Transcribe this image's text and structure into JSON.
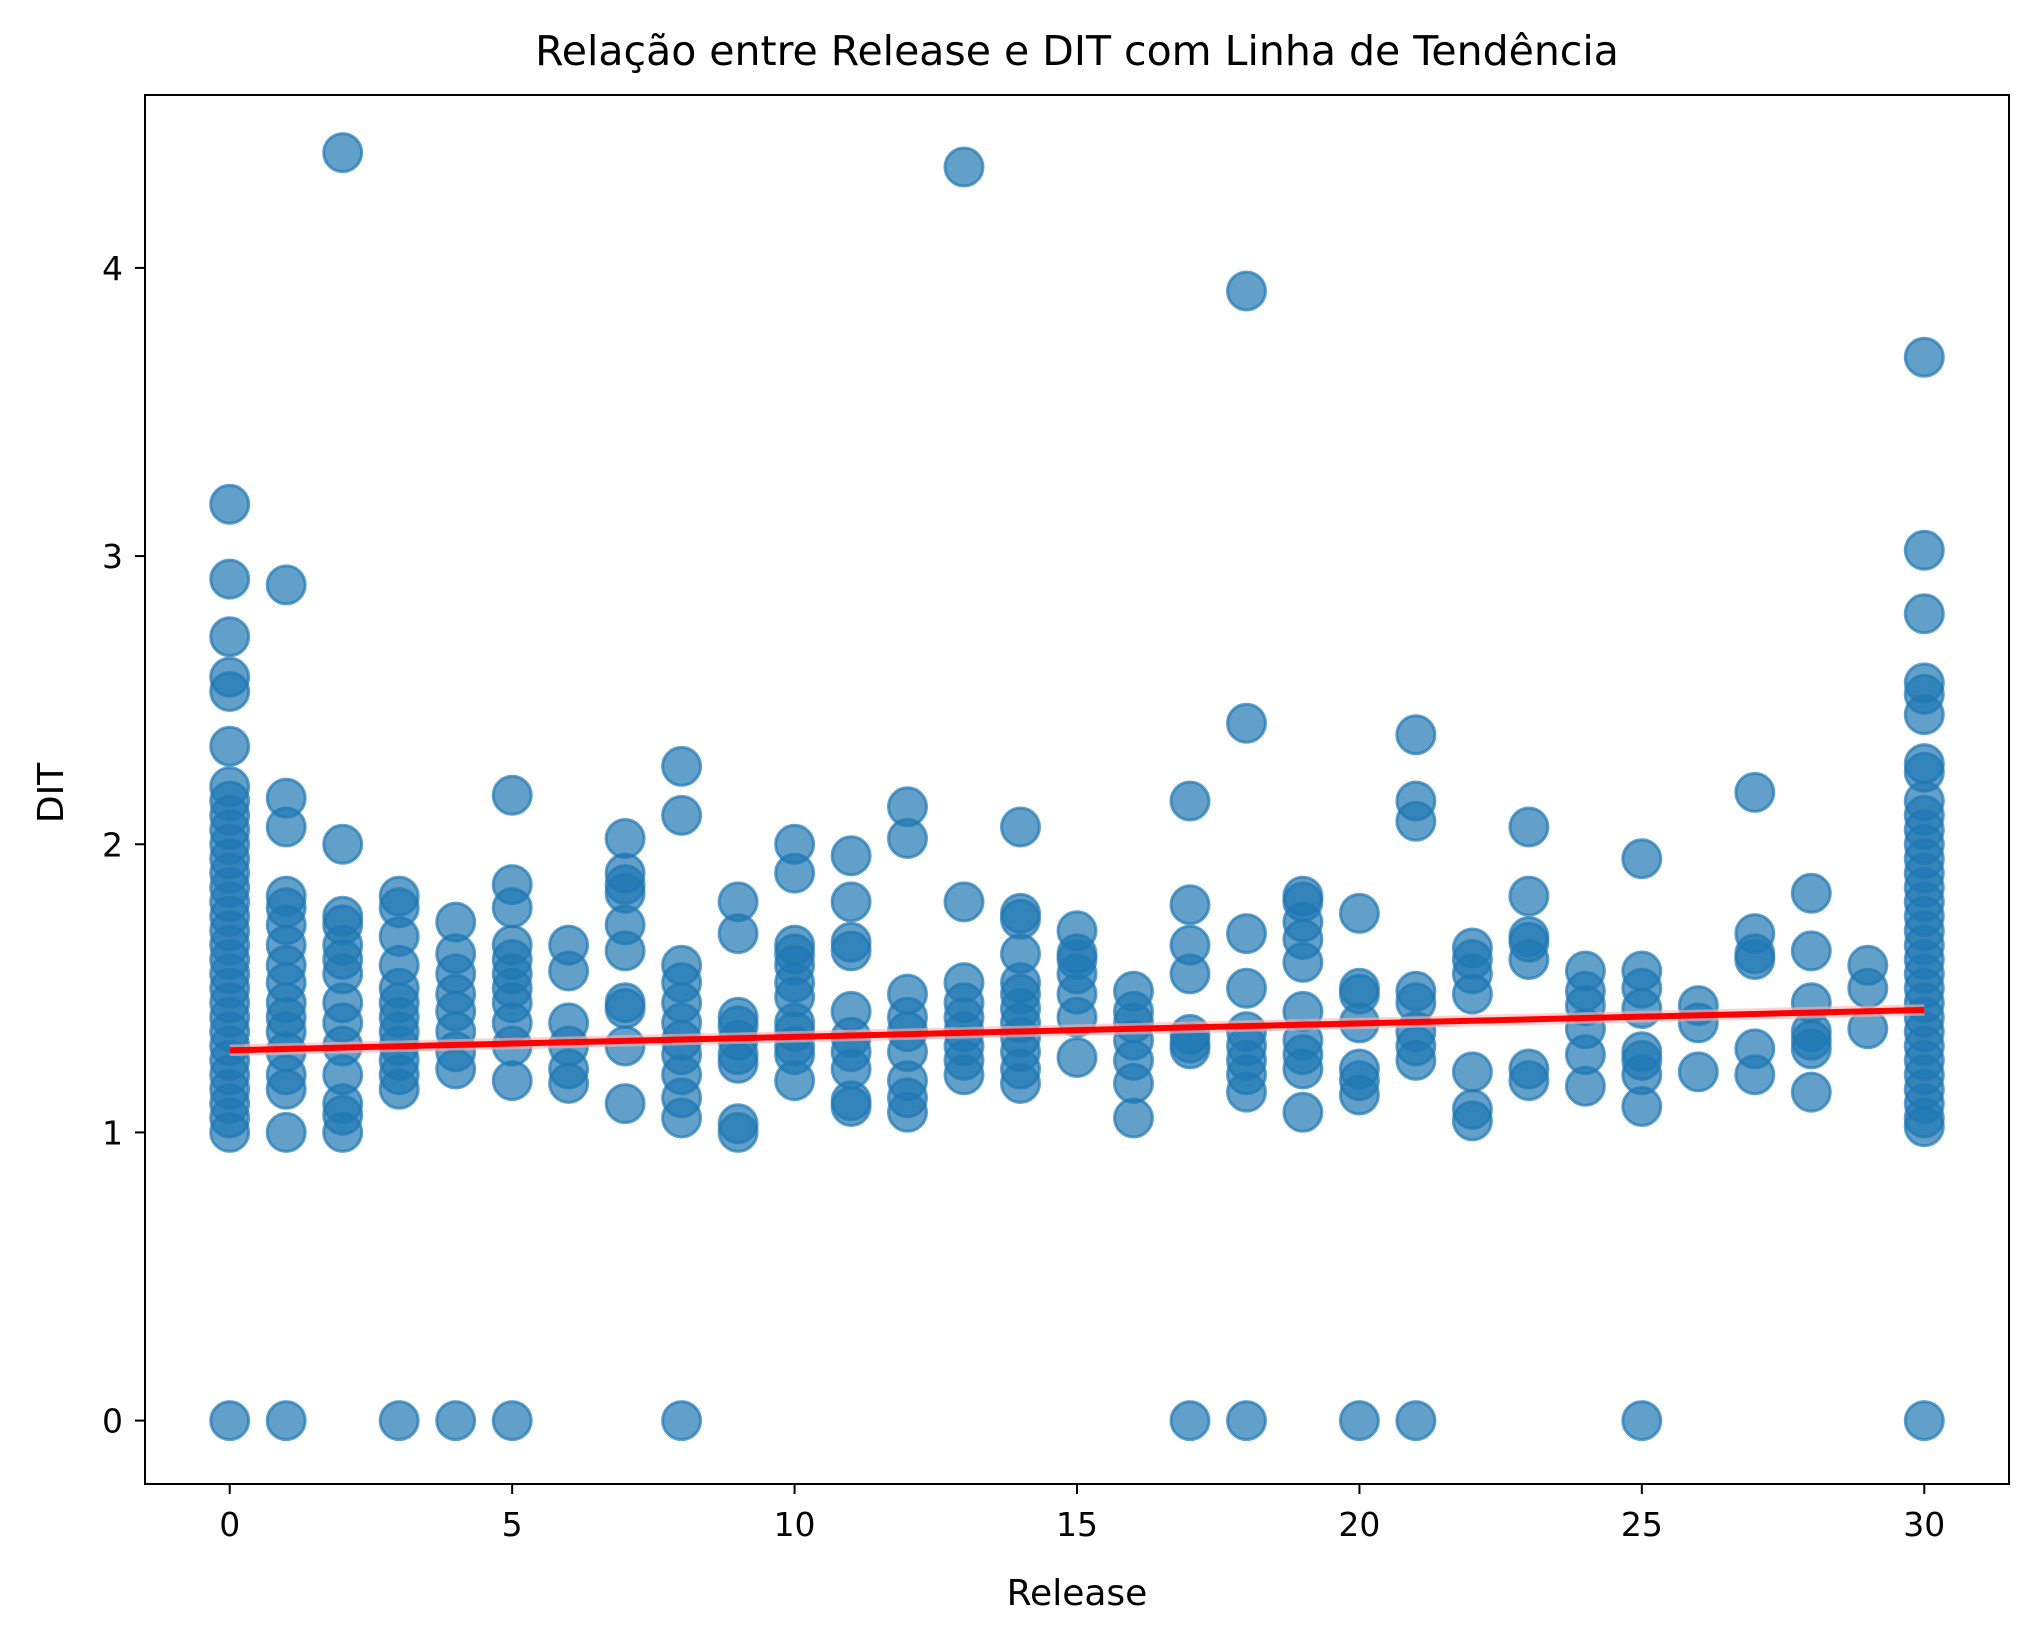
{
  "chart_data": {
    "type": "scatter",
    "title": "Relação entre Release e DIT com Linha de Tendência",
    "xlabel": "Release",
    "ylabel": "DIT",
    "xlim": [
      -1.5,
      31.5
    ],
    "ylim": [
      -0.22,
      4.6
    ],
    "xticks": [
      0,
      5,
      10,
      15,
      20,
      25,
      30
    ],
    "yticks": [
      0,
      1,
      2,
      3,
      4
    ],
    "grid": false,
    "legend": "none",
    "colors": {
      "points": "#1f77b4",
      "trend": "#ff0000",
      "band": "#ffb3b3"
    },
    "series": [
      {
        "points": [
          [
            0,
            0
          ],
          [
            0,
            1.0
          ],
          [
            0,
            1.05
          ],
          [
            0,
            1.1
          ],
          [
            0,
            1.15
          ],
          [
            0,
            1.2
          ],
          [
            0,
            1.25
          ],
          [
            0,
            1.3
          ],
          [
            0,
            1.35
          ],
          [
            0,
            1.4
          ],
          [
            0,
            1.45
          ],
          [
            0,
            1.5
          ],
          [
            0,
            1.55
          ],
          [
            0,
            1.6
          ],
          [
            0,
            1.65
          ],
          [
            0,
            1.7
          ],
          [
            0,
            1.75
          ],
          [
            0,
            1.8
          ],
          [
            0,
            1.85
          ],
          [
            0,
            1.9
          ],
          [
            0,
            1.95
          ],
          [
            0,
            2.0
          ],
          [
            0,
            2.05
          ],
          [
            0,
            2.1
          ],
          [
            0,
            2.15
          ],
          [
            0,
            2.2
          ],
          [
            0,
            2.34
          ],
          [
            0,
            2.53
          ],
          [
            0,
            2.58
          ],
          [
            0,
            2.72
          ],
          [
            0,
            2.92
          ],
          [
            0,
            3.18
          ],
          [
            1,
            0
          ],
          [
            1,
            1.0
          ],
          [
            1,
            1.15
          ],
          [
            1,
            1.2
          ],
          [
            1,
            1.28
          ],
          [
            1,
            1.35
          ],
          [
            1,
            1.4
          ],
          [
            1,
            1.45
          ],
          [
            1,
            1.52
          ],
          [
            1,
            1.58
          ],
          [
            1,
            1.65
          ],
          [
            1,
            1.72
          ],
          [
            1,
            1.78
          ],
          [
            1,
            1.82
          ],
          [
            1,
            2.06
          ],
          [
            1,
            2.16
          ],
          [
            1,
            2.9
          ],
          [
            2,
            1.0
          ],
          [
            2,
            1.06
          ],
          [
            2,
            1.1
          ],
          [
            2,
            1.2
          ],
          [
            2,
            1.3
          ],
          [
            2,
            1.38
          ],
          [
            2,
            1.45
          ],
          [
            2,
            1.55
          ],
          [
            2,
            1.6
          ],
          [
            2,
            1.65
          ],
          [
            2,
            1.72
          ],
          [
            2,
            1.75
          ],
          [
            2,
            2.0
          ],
          [
            2,
            4.4
          ],
          [
            3,
            0
          ],
          [
            3,
            1.15
          ],
          [
            3,
            1.2
          ],
          [
            3,
            1.25
          ],
          [
            3,
            1.3
          ],
          [
            3,
            1.35
          ],
          [
            3,
            1.4
          ],
          [
            3,
            1.45
          ],
          [
            3,
            1.5
          ],
          [
            3,
            1.58
          ],
          [
            3,
            1.68
          ],
          [
            3,
            1.78
          ],
          [
            3,
            1.82
          ],
          [
            4,
            0
          ],
          [
            4,
            1.22
          ],
          [
            4,
            1.28
          ],
          [
            4,
            1.35
          ],
          [
            4,
            1.42
          ],
          [
            4,
            1.48
          ],
          [
            4,
            1.55
          ],
          [
            4,
            1.62
          ],
          [
            4,
            1.73
          ],
          [
            5,
            0
          ],
          [
            5,
            1.18
          ],
          [
            5,
            1.3
          ],
          [
            5,
            1.38
          ],
          [
            5,
            1.45
          ],
          [
            5,
            1.5
          ],
          [
            5,
            1.55
          ],
          [
            5,
            1.6
          ],
          [
            5,
            1.65
          ],
          [
            5,
            1.78
          ],
          [
            5,
            1.86
          ],
          [
            5,
            2.17
          ],
          [
            6,
            1.17
          ],
          [
            6,
            1.22
          ],
          [
            6,
            1.3
          ],
          [
            6,
            1.38
          ],
          [
            6,
            1.56
          ],
          [
            6,
            1.65
          ],
          [
            7,
            1.1
          ],
          [
            7,
            1.3
          ],
          [
            7,
            1.43
          ],
          [
            7,
            1.45
          ],
          [
            7,
            1.63
          ],
          [
            7,
            1.72
          ],
          [
            7,
            1.83
          ],
          [
            7,
            1.86
          ],
          [
            7,
            1.9
          ],
          [
            7,
            2.02
          ],
          [
            8,
            0
          ],
          [
            8,
            1.05
          ],
          [
            8,
            1.12
          ],
          [
            8,
            1.2
          ],
          [
            8,
            1.27
          ],
          [
            8,
            1.32
          ],
          [
            8,
            1.38
          ],
          [
            8,
            1.45
          ],
          [
            8,
            1.52
          ],
          [
            8,
            1.58
          ],
          [
            8,
            2.1
          ],
          [
            8,
            2.27
          ],
          [
            9,
            1.0
          ],
          [
            9,
            1.03
          ],
          [
            9,
            1.24
          ],
          [
            9,
            1.27
          ],
          [
            9,
            1.32
          ],
          [
            9,
            1.37
          ],
          [
            9,
            1.4
          ],
          [
            9,
            1.69
          ],
          [
            9,
            1.8
          ],
          [
            10,
            1.18
          ],
          [
            10,
            1.27
          ],
          [
            10,
            1.3
          ],
          [
            10,
            1.35
          ],
          [
            10,
            1.38
          ],
          [
            10,
            1.47
          ],
          [
            10,
            1.52
          ],
          [
            10,
            1.58
          ],
          [
            10,
            1.62
          ],
          [
            10,
            1.65
          ],
          [
            10,
            1.9
          ],
          [
            10,
            2.0
          ],
          [
            11,
            1.09
          ],
          [
            11,
            1.11
          ],
          [
            11,
            1.22
          ],
          [
            11,
            1.28
          ],
          [
            11,
            1.33
          ],
          [
            11,
            1.42
          ],
          [
            11,
            1.63
          ],
          [
            11,
            1.66
          ],
          [
            11,
            1.8
          ],
          [
            11,
            1.96
          ],
          [
            12,
            1.07
          ],
          [
            12,
            1.12
          ],
          [
            12,
            1.18
          ],
          [
            12,
            1.28
          ],
          [
            12,
            1.35
          ],
          [
            12,
            1.4
          ],
          [
            12,
            1.48
          ],
          [
            12,
            2.02
          ],
          [
            12,
            2.13
          ],
          [
            13,
            1.2
          ],
          [
            13,
            1.25
          ],
          [
            13,
            1.3
          ],
          [
            13,
            1.35
          ],
          [
            13,
            1.4
          ],
          [
            13,
            1.45
          ],
          [
            13,
            1.52
          ],
          [
            13,
            1.8
          ],
          [
            13,
            4.35
          ],
          [
            14,
            1.17
          ],
          [
            14,
            1.22
          ],
          [
            14,
            1.28
          ],
          [
            14,
            1.33
          ],
          [
            14,
            1.38
          ],
          [
            14,
            1.43
          ],
          [
            14,
            1.48
          ],
          [
            14,
            1.52
          ],
          [
            14,
            1.62
          ],
          [
            14,
            1.74
          ],
          [
            14,
            1.76
          ],
          [
            14,
            2.06
          ],
          [
            15,
            1.26
          ],
          [
            15,
            1.4
          ],
          [
            15,
            1.48
          ],
          [
            15,
            1.55
          ],
          [
            15,
            1.6
          ],
          [
            15,
            1.62
          ],
          [
            15,
            1.7
          ],
          [
            16,
            1.05
          ],
          [
            16,
            1.17
          ],
          [
            16,
            1.25
          ],
          [
            16,
            1.32
          ],
          [
            16,
            1.38
          ],
          [
            16,
            1.42
          ],
          [
            16,
            1.49
          ],
          [
            17,
            0
          ],
          [
            17,
            1.29
          ],
          [
            17,
            1.31
          ],
          [
            17,
            1.34
          ],
          [
            17,
            1.55
          ],
          [
            17,
            1.65
          ],
          [
            17,
            1.79
          ],
          [
            17,
            2.15
          ],
          [
            18,
            0
          ],
          [
            18,
            1.14
          ],
          [
            18,
            1.2
          ],
          [
            18,
            1.25
          ],
          [
            18,
            1.3
          ],
          [
            18,
            1.35
          ],
          [
            18,
            1.5
          ],
          [
            18,
            1.69
          ],
          [
            18,
            2.42
          ],
          [
            18,
            3.92
          ],
          [
            19,
            1.07
          ],
          [
            19,
            1.22
          ],
          [
            19,
            1.27
          ],
          [
            19,
            1.32
          ],
          [
            19,
            1.42
          ],
          [
            19,
            1.59
          ],
          [
            19,
            1.67
          ],
          [
            19,
            1.73
          ],
          [
            19,
            1.8
          ],
          [
            19,
            1.82
          ],
          [
            20,
            0
          ],
          [
            20,
            1.13
          ],
          [
            20,
            1.18
          ],
          [
            20,
            1.22
          ],
          [
            20,
            1.38
          ],
          [
            20,
            1.48
          ],
          [
            20,
            1.5
          ],
          [
            20,
            1.76
          ],
          [
            21,
            0
          ],
          [
            21,
            1.25
          ],
          [
            21,
            1.3
          ],
          [
            21,
            1.35
          ],
          [
            21,
            1.45
          ],
          [
            21,
            1.49
          ],
          [
            21,
            2.08
          ],
          [
            21,
            2.15
          ],
          [
            21,
            2.38
          ],
          [
            22,
            1.04
          ],
          [
            22,
            1.08
          ],
          [
            22,
            1.21
          ],
          [
            22,
            1.48
          ],
          [
            22,
            1.55
          ],
          [
            22,
            1.6
          ],
          [
            22,
            1.64
          ],
          [
            23,
            1.18
          ],
          [
            23,
            1.22
          ],
          [
            23,
            1.6
          ],
          [
            23,
            1.66
          ],
          [
            23,
            1.68
          ],
          [
            23,
            1.82
          ],
          [
            23,
            2.06
          ],
          [
            24,
            1.16
          ],
          [
            24,
            1.27
          ],
          [
            24,
            1.36
          ],
          [
            24,
            1.44
          ],
          [
            24,
            1.49
          ],
          [
            24,
            1.56
          ],
          [
            25,
            0
          ],
          [
            25,
            1.09
          ],
          [
            25,
            1.2
          ],
          [
            25,
            1.25
          ],
          [
            25,
            1.28
          ],
          [
            25,
            1.43
          ],
          [
            25,
            1.5
          ],
          [
            25,
            1.56
          ],
          [
            25,
            1.95
          ],
          [
            26,
            1.21
          ],
          [
            26,
            1.38
          ],
          [
            26,
            1.44
          ],
          [
            27,
            1.2
          ],
          [
            27,
            1.29
          ],
          [
            27,
            1.6
          ],
          [
            27,
            1.62
          ],
          [
            27,
            1.69
          ],
          [
            27,
            2.18
          ],
          [
            28,
            1.14
          ],
          [
            28,
            1.29
          ],
          [
            28,
            1.32
          ],
          [
            28,
            1.35
          ],
          [
            28,
            1.45
          ],
          [
            28,
            1.63
          ],
          [
            28,
            1.83
          ],
          [
            29,
            1.36
          ],
          [
            29,
            1.5
          ],
          [
            29,
            1.58
          ],
          [
            30,
            0
          ],
          [
            30,
            1.02
          ],
          [
            30,
            1.05
          ],
          [
            30,
            1.1
          ],
          [
            30,
            1.15
          ],
          [
            30,
            1.2
          ],
          [
            30,
            1.25
          ],
          [
            30,
            1.3
          ],
          [
            30,
            1.35
          ],
          [
            30,
            1.4
          ],
          [
            30,
            1.45
          ],
          [
            30,
            1.5
          ],
          [
            30,
            1.55
          ],
          [
            30,
            1.6
          ],
          [
            30,
            1.65
          ],
          [
            30,
            1.7
          ],
          [
            30,
            1.75
          ],
          [
            30,
            1.8
          ],
          [
            30,
            1.85
          ],
          [
            30,
            1.9
          ],
          [
            30,
            1.95
          ],
          [
            30,
            2.0
          ],
          [
            30,
            2.05
          ],
          [
            30,
            2.1
          ],
          [
            30,
            2.15
          ],
          [
            30,
            2.25
          ],
          [
            30,
            2.28
          ],
          [
            30,
            2.45
          ],
          [
            30,
            2.52
          ],
          [
            30,
            2.56
          ],
          [
            30,
            2.8
          ],
          [
            30,
            3.02
          ],
          [
            30,
            3.69
          ]
        ]
      }
    ],
    "trendline": {
      "x": [
        0,
        30
      ],
      "y": [
        1.285,
        1.425
      ],
      "band": 0.02
    }
  }
}
